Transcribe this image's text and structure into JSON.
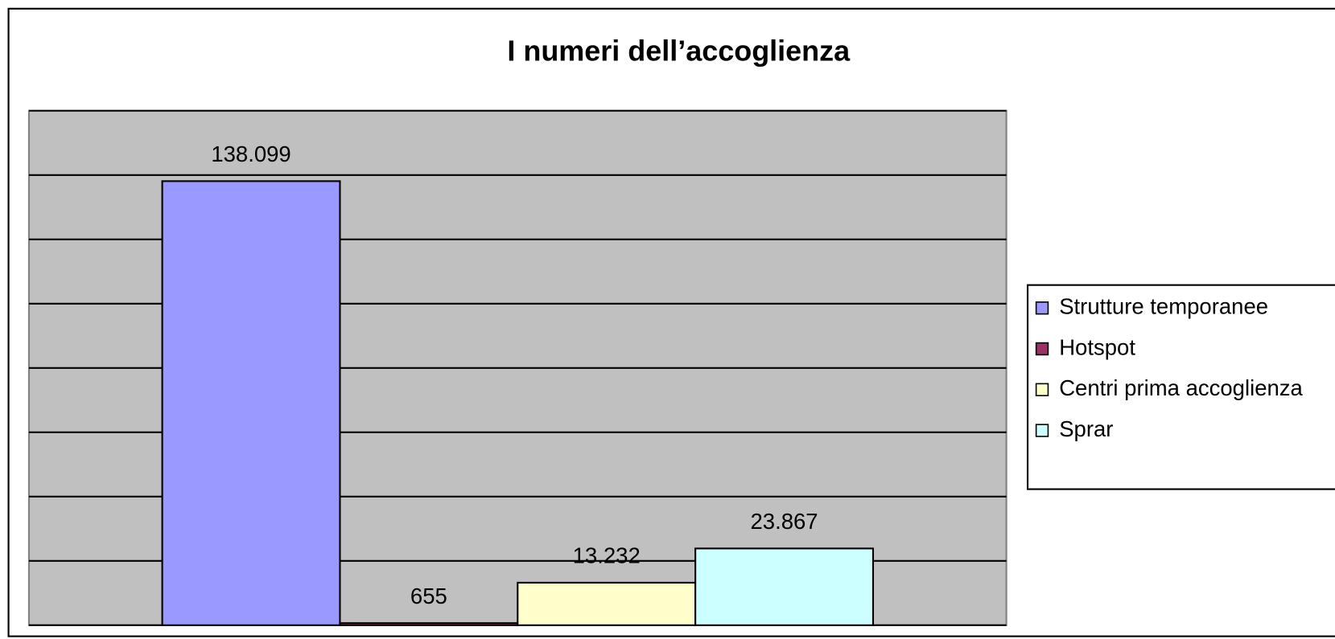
{
  "chart_data": {
    "type": "bar",
    "title": "I numeri dell’accoglienza",
    "series": [
      {
        "name": "Strutture temporanee",
        "color": "#9999ff",
        "values": [
          138099
        ],
        "value_labels": [
          "138.099"
        ]
      },
      {
        "name": "Hotspot",
        "color": "#993366",
        "values": [
          655
        ],
        "value_labels": [
          "655"
        ]
      },
      {
        "name": "Centri prima accoglienza",
        "color": "#ffffcc",
        "values": [
          13232
        ],
        "value_labels": [
          "13.232"
        ]
      },
      {
        "name": "Sprar",
        "color": "#ccffff",
        "values": [
          23867
        ],
        "value_labels": [
          "23.867"
        ]
      }
    ],
    "ylim": [
      0,
      160000
    ],
    "yticks": [
      0,
      20000,
      40000,
      60000,
      80000,
      100000,
      120000,
      140000,
      160000
    ],
    "grid": true,
    "legend": "right"
  }
}
